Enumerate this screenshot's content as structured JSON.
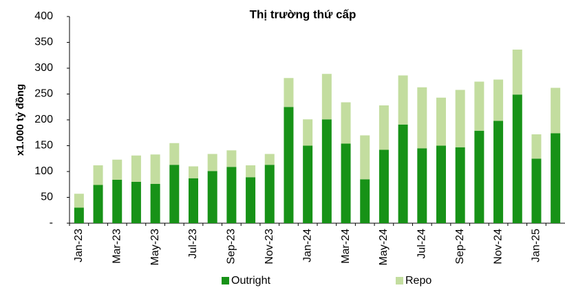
{
  "chart_data": {
    "type": "stacked_bar",
    "title": "Thị trường thứ cấp",
    "y_label": "x1.000 tỷ đồng",
    "categories": [
      "Jan-23",
      null,
      "Mar-23",
      null,
      "May-23",
      null,
      "Jul-23",
      null,
      "Sep-23",
      null,
      "Nov-23",
      null,
      "Jan-24",
      null,
      "Mar-24",
      null,
      "May-24",
      null,
      "Jul-24",
      null,
      "Sep-24",
      null,
      "Nov-24",
      null,
      "Jan-25",
      null
    ],
    "series": [
      {
        "name": "Outright",
        "color": "#179217",
        "values": [
          30,
          74,
          84,
          80,
          76,
          113,
          87,
          101,
          109,
          89,
          113,
          225,
          150,
          201,
          154,
          85,
          142,
          191,
          145,
          150,
          147,
          179,
          198,
          249,
          125,
          174
        ]
      },
      {
        "name": "Repo",
        "color": "#c3dd9f",
        "values": [
          27,
          38,
          39,
          51,
          57,
          42,
          23,
          33,
          32,
          23,
          21,
          56,
          51,
          88,
          80,
          85,
          86,
          95,
          118,
          93,
          111,
          95,
          80,
          87,
          47,
          88
        ]
      }
    ],
    "ylim": [
      0,
      400
    ],
    "yticks": [
      {
        "value": 0,
        "label": "-"
      },
      50,
      100,
      150,
      200,
      250,
      300,
      350,
      400
    ],
    "legend": "bottom"
  }
}
